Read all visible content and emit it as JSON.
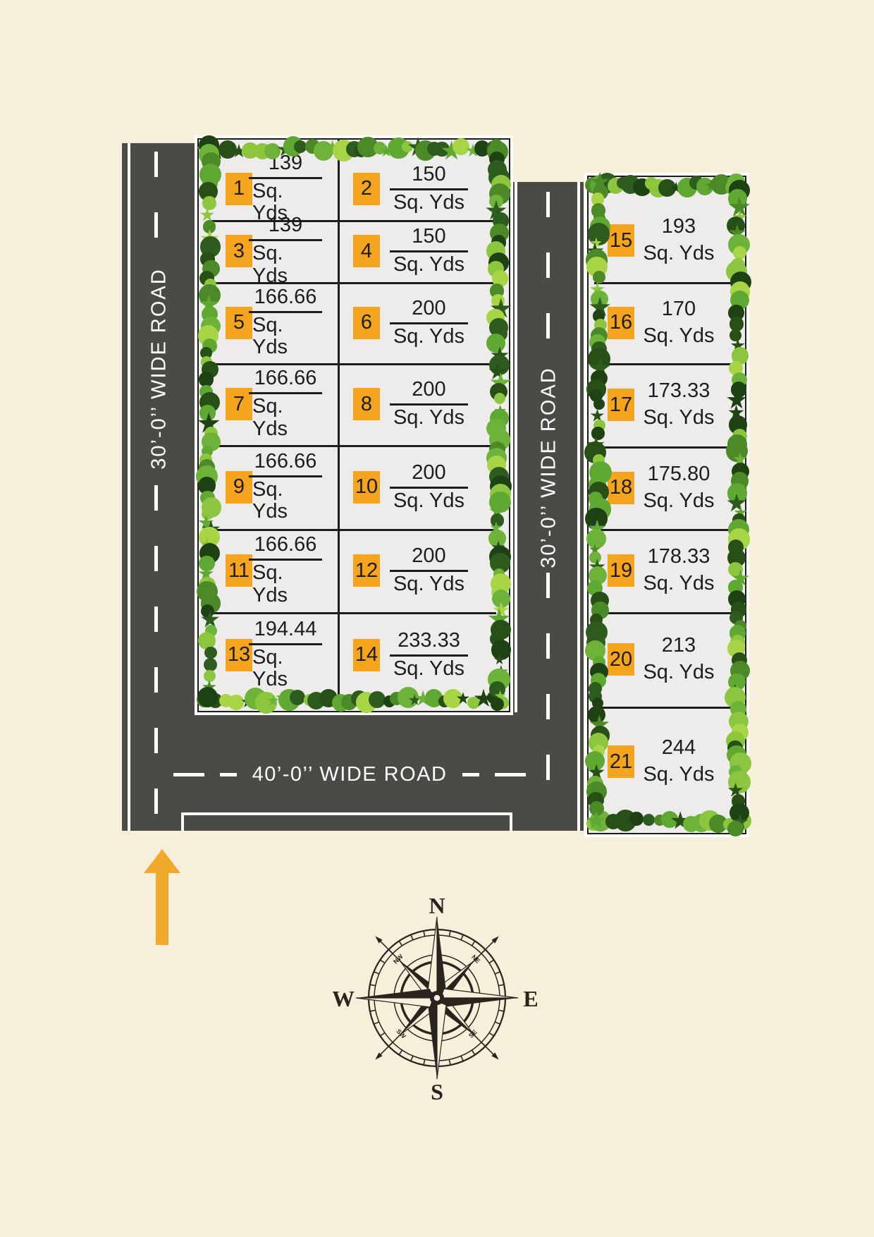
{
  "colors": {
    "background": "#F6EFDA",
    "road": "#4C4A47",
    "road_marking": "#FFFFFF",
    "plot_fill": "#EDECEA",
    "badge": "#F5A41D",
    "ink": "#1D1D1B",
    "arrow": "#F0A92B",
    "compass": "#29241E",
    "tree_palette": [
      "#8CC63F",
      "#5FA832",
      "#2E5C1E",
      "#1E4213",
      "#A8D545",
      "#4C8A28",
      "#6DB33A",
      "#274F16"
    ]
  },
  "unit_label": "Sq. Yds",
  "roads": {
    "left_vertical": {
      "label": "30’-0’’ WIDE ROAD"
    },
    "middle_vertical": {
      "label": "30’-0’’ WIDE ROAD"
    },
    "bottom_horizontal": {
      "label": "40’-0’’ WIDE ROAD"
    }
  },
  "left_block": {
    "plots": [
      {
        "no": "1",
        "area": "139"
      },
      {
        "no": "2",
        "area": "150"
      },
      {
        "no": "3",
        "area": "139"
      },
      {
        "no": "4",
        "area": "150"
      },
      {
        "no": "5",
        "area": "166.66"
      },
      {
        "no": "6",
        "area": "200"
      },
      {
        "no": "7",
        "area": "166.66"
      },
      {
        "no": "8",
        "area": "200"
      },
      {
        "no": "9",
        "area": "166.66"
      },
      {
        "no": "10",
        "area": "200"
      },
      {
        "no": "11",
        "area": "166.66"
      },
      {
        "no": "12",
        "area": "200"
      },
      {
        "no": "13",
        "area": "194.44"
      },
      {
        "no": "14",
        "area": "233.33"
      }
    ]
  },
  "right_block": {
    "plots": [
      {
        "no": "15",
        "area": "193"
      },
      {
        "no": "16",
        "area": "170"
      },
      {
        "no": "17",
        "area": "173.33"
      },
      {
        "no": "18",
        "area": "175.80"
      },
      {
        "no": "19",
        "area": "178.33"
      },
      {
        "no": "20",
        "area": "213"
      },
      {
        "no": "21",
        "area": "244"
      }
    ]
  },
  "compass": {
    "north": "N",
    "east": "E",
    "south": "S",
    "west": "W",
    "nw": "NW",
    "ne": "NE",
    "se": "SE",
    "sw": "SW"
  }
}
